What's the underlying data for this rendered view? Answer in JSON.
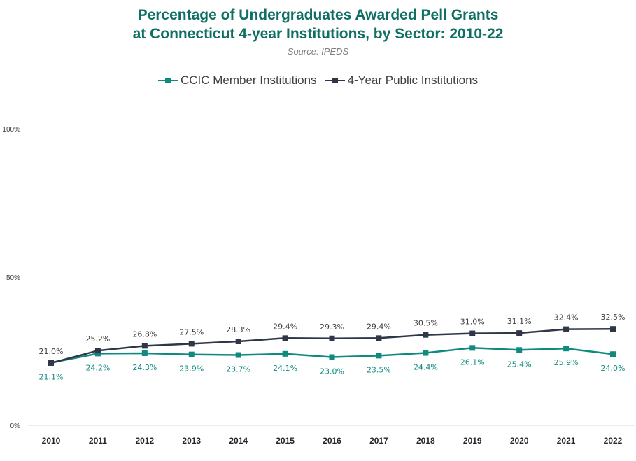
{
  "chart_data": {
    "type": "line",
    "title_line1": "Percentage of Undergraduates Awarded Pell Grants",
    "title_line2": "at Connecticut 4-year Institutions, by Sector: 2010-22",
    "subtitle": "Source: IPEDS",
    "x": [
      "2010",
      "2011",
      "2012",
      "2013",
      "2014",
      "2015",
      "2016",
      "2017",
      "2018",
      "2019",
      "2020",
      "2021",
      "2022"
    ],
    "y_ticks": [
      "0%",
      "50%",
      "100%"
    ],
    "ylim": [
      0,
      100
    ],
    "legend_position": "top-center",
    "grid": false,
    "series": [
      {
        "name": "CCIC Member Institutions",
        "color": "#0f8a7e",
        "values": [
          21.1,
          24.2,
          24.3,
          23.9,
          23.7,
          24.1,
          23.0,
          23.5,
          24.4,
          26.1,
          25.4,
          25.9,
          24.0
        ],
        "labels": [
          "21.1%",
          "24.2%",
          "24.3%",
          "23.9%",
          "23.7%",
          "24.1%",
          "23.0%",
          "23.5%",
          "24.4%",
          "26.1%",
          "25.4%",
          "25.9%",
          "24.0%"
        ],
        "label_position": "below"
      },
      {
        "name": "4-Year Public Institutions",
        "color": "#2e3648",
        "values": [
          21.0,
          25.2,
          26.8,
          27.5,
          28.3,
          29.4,
          29.3,
          29.4,
          30.5,
          31.0,
          31.1,
          32.4,
          32.5
        ],
        "labels": [
          "21.0%",
          "25.2%",
          "26.8%",
          "27.5%",
          "28.3%",
          "29.4%",
          "29.3%",
          "29.4%",
          "30.5%",
          "31.0%",
          "31.1%",
          "32.4%",
          "32.5%"
        ],
        "label_position": "above"
      }
    ]
  }
}
